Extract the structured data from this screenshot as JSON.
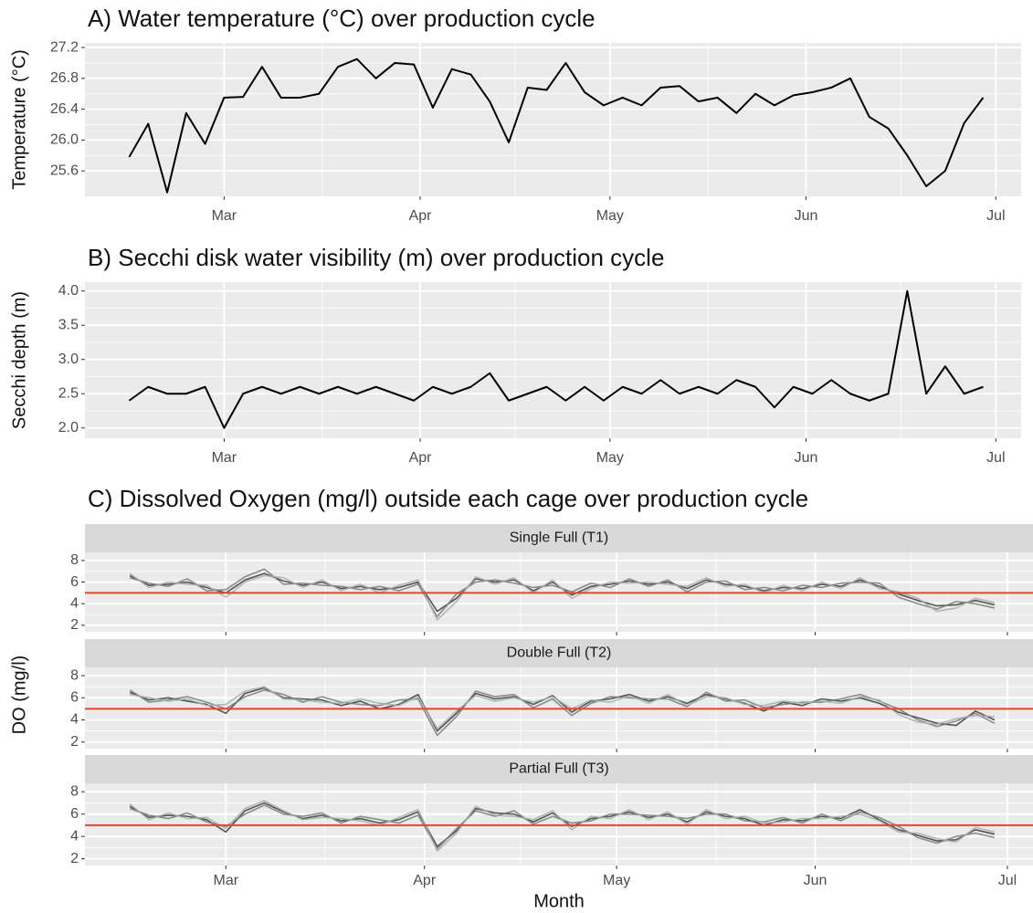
{
  "chart_data": [
    {
      "type": "line",
      "title": "A) Water temperature (°C) over production cycle",
      "y_label": "Temperature (°C)",
      "color": "#000000",
      "x": [
        0,
        3,
        6,
        9,
        12,
        15,
        18,
        21,
        24,
        27,
        30,
        33,
        36,
        39,
        42,
        45,
        48,
        51,
        54,
        57,
        60,
        63,
        66,
        69,
        72,
        75,
        78,
        81,
        84,
        87,
        90,
        93,
        96,
        99,
        102,
        105,
        108,
        111,
        114,
        117,
        120,
        123,
        126,
        129,
        132,
        135
      ],
      "values": [
        25.78,
        26.21,
        25.32,
        26.35,
        25.95,
        26.55,
        26.56,
        26.95,
        26.55,
        26.55,
        26.6,
        26.95,
        27.05,
        26.8,
        27.0,
        26.98,
        26.42,
        26.92,
        26.85,
        26.5,
        25.97,
        26.68,
        26.65,
        27.0,
        26.62,
        26.45,
        26.55,
        26.45,
        26.68,
        26.7,
        26.5,
        26.55,
        26.35,
        26.6,
        26.45,
        26.58,
        26.62,
        26.68,
        26.8,
        26.3,
        26.15,
        25.8,
        25.4,
        25.6,
        26.22,
        26.55
      ],
      "xlim": [
        -7,
        141
      ],
      "xticks": [
        {
          "value": 15,
          "label": "Mar"
        },
        {
          "value": 46,
          "label": "Apr"
        },
        {
          "value": 76,
          "label": "May"
        },
        {
          "value": 107,
          "label": "Jun"
        },
        {
          "value": 137,
          "label": "Jul"
        }
      ],
      "ylim": [
        25.27,
        27.26
      ],
      "yticks": [
        25.6,
        {
          "value": 26,
          "label": "26.0"
        },
        26.4,
        26.8,
        27.2
      ],
      "grid": true
    },
    {
      "type": "line",
      "title": "B) Secchi disk water visibility (m) over production cycle",
      "y_label": "Secchi depth (m)",
      "color": "#000000",
      "x": [
        0,
        3,
        6,
        9,
        12,
        15,
        18,
        21,
        24,
        27,
        30,
        33,
        36,
        39,
        42,
        45,
        48,
        51,
        54,
        57,
        60,
        63,
        66,
        69,
        72,
        75,
        78,
        81,
        84,
        87,
        90,
        93,
        96,
        99,
        102,
        105,
        108,
        111,
        114,
        117,
        120,
        123,
        126,
        129,
        132,
        135
      ],
      "values": [
        2.4,
        2.6,
        2.5,
        2.5,
        2.6,
        2.0,
        2.5,
        2.6,
        2.5,
        2.6,
        2.5,
        2.6,
        2.5,
        2.6,
        2.5,
        2.4,
        2.6,
        2.5,
        2.6,
        2.8,
        2.4,
        2.5,
        2.6,
        2.4,
        2.6,
        2.4,
        2.6,
        2.5,
        2.7,
        2.5,
        2.6,
        2.5,
        2.7,
        2.6,
        2.3,
        2.6,
        2.5,
        2.7,
        2.5,
        2.4,
        2.5,
        4.0,
        2.5,
        2.9,
        2.5,
        2.6
      ],
      "xlim": [
        -7,
        141
      ],
      "xticks": [
        {
          "value": 15,
          "label": "Mar"
        },
        {
          "value": 46,
          "label": "Apr"
        },
        {
          "value": 76,
          "label": "May"
        },
        {
          "value": 107,
          "label": "Jun"
        },
        {
          "value": 137,
          "label": "Jul"
        }
      ],
      "ylim": [
        1.85,
        4.13
      ],
      "yticks": [
        {
          "value": 2,
          "label": "2.0"
        },
        2.5,
        {
          "value": 3,
          "label": "3.0"
        },
        3.5,
        {
          "value": 4,
          "label": "4.0"
        }
      ],
      "grid": true
    },
    {
      "type": "facet-line",
      "title": "C) Dissolved Oxygen (mg/l) outside each cage over production cycle",
      "x_label": "Month",
      "y_label": "DO (mg/l)",
      "hline": 5,
      "hline_color": "#e0472f",
      "x": [
        0,
        3,
        6,
        9,
        12,
        15,
        18,
        21,
        24,
        27,
        30,
        33,
        36,
        39,
        42,
        45,
        48,
        51,
        54,
        57,
        60,
        63,
        66,
        69,
        72,
        75,
        78,
        81,
        84,
        87,
        90,
        93,
        96,
        99,
        102,
        105,
        108,
        111,
        114,
        117,
        120,
        123,
        126,
        129,
        132,
        135
      ],
      "xlim": [
        -7,
        141
      ],
      "xticks": [
        {
          "value": 15,
          "label": "Mar"
        },
        {
          "value": 46,
          "label": "Apr"
        },
        {
          "value": 76,
          "label": "May"
        },
        {
          "value": 107,
          "label": "Jun"
        },
        {
          "value": 137,
          "label": "Jul"
        }
      ],
      "ylim": [
        1.4,
        8.75
      ],
      "yticks": [
        2,
        4,
        6,
        8
      ],
      "grid": true,
      "facets": [
        {
          "title": "Single Full (T1)",
          "series": [
            {
              "color": "#3a3a3a",
              "values": [
                6.6,
                5.7,
                5.8,
                6.0,
                5.5,
                5.0,
                6.2,
                6.8,
                6.1,
                5.7,
                6.0,
                5.4,
                5.6,
                5.3,
                5.5,
                6.0,
                3.3,
                4.5,
                6.3,
                6.0,
                6.2,
                5.2,
                6.0,
                4.8,
                5.6,
                5.8,
                6.1,
                5.8,
                6.0,
                5.4,
                6.2,
                5.8,
                5.6,
                5.2,
                5.5,
                5.4,
                5.8,
                5.6,
                6.2,
                5.6,
                4.9,
                4.3,
                3.8,
                3.9,
                4.3,
                3.9
              ]
            },
            {
              "color": "#7a7a7a",
              "values": [
                6.4,
                5.9,
                5.6,
                6.3,
                5.2,
                5.3,
                6.5,
                7.2,
                5.8,
                5.9,
                5.7,
                5.6,
                5.3,
                5.6,
                5.2,
                5.8,
                2.8,
                4.9,
                6.0,
                6.2,
                5.9,
                5.5,
                5.7,
                5.1,
                5.9,
                5.5,
                6.3,
                5.6,
                6.2,
                5.1,
                6.0,
                6.1,
                5.3,
                5.5,
                5.2,
                5.7,
                5.5,
                5.9,
                6.0,
                5.9,
                4.6,
                4.0,
                3.5,
                4.2,
                4.0,
                3.6
              ]
            },
            {
              "color": "#acacac",
              "values": [
                6.8,
                5.5,
                6.0,
                5.8,
                5.7,
                4.6,
                6.0,
                6.6,
                6.4,
                5.5,
                6.2,
                5.2,
                5.8,
                5.0,
                5.7,
                6.2,
                2.5,
                4.2,
                6.5,
                5.8,
                6.4,
                5.0,
                6.2,
                4.5,
                5.4,
                6.0,
                5.9,
                6.0,
                5.8,
                5.6,
                6.4,
                5.6,
                5.8,
                5.0,
                5.7,
                5.2,
                6.0,
                5.4,
                6.4,
                5.4,
                5.1,
                4.5,
                3.3,
                3.6,
                4.5,
                4.1
              ]
            }
          ]
        },
        {
          "title": "Double Full (T2)",
          "series": [
            {
              "color": "#3a3a3a",
              "values": [
                6.5,
                5.8,
                6.0,
                5.7,
                5.4,
                4.6,
                6.4,
                6.9,
                6.0,
                5.9,
                5.8,
                5.3,
                5.7,
                5.0,
                5.4,
                6.3,
                3.0,
                4.6,
                6.4,
                5.9,
                6.1,
                5.4,
                6.2,
                4.7,
                5.7,
                5.9,
                6.3,
                5.7,
                6.1,
                5.5,
                6.3,
                5.9,
                5.5,
                4.8,
                5.6,
                5.3,
                5.9,
                5.7,
                6.0,
                5.5,
                4.7,
                4.2,
                3.7,
                3.5,
                4.8,
                4.0
              ]
            },
            {
              "color": "#7a7a7a",
              "values": [
                6.7,
                5.6,
                5.8,
                6.1,
                5.6,
                5.0,
                6.1,
                6.7,
                6.3,
                5.6,
                6.1,
                5.6,
                5.4,
                5.3,
                5.8,
                5.9,
                2.6,
                4.3,
                6.6,
                6.1,
                6.3,
                5.1,
                5.9,
                4.4,
                5.5,
                6.1,
                6.0,
                5.9,
                5.9,
                5.2,
                6.5,
                5.7,
                5.8,
                5.1,
                5.4,
                5.6,
                5.6,
                5.9,
                6.3,
                5.7,
                5.0,
                4.0,
                3.4,
                3.9,
                4.6,
                3.7
              ]
            },
            {
              "color": "#acacac",
              "values": [
                6.3,
                6.0,
                5.7,
                5.9,
                5.3,
                5.4,
                6.6,
                7.0,
                5.9,
                5.8,
                5.6,
                5.5,
                5.9,
                5.5,
                5.3,
                6.1,
                3.2,
                4.8,
                6.2,
                5.7,
                6.0,
                5.6,
                6.1,
                5.0,
                5.8,
                5.6,
                6.2,
                5.5,
                6.3,
                5.3,
                6.1,
                6.0,
                5.4,
                5.3,
                5.7,
                5.5,
                5.7,
                5.5,
                6.1,
                5.8,
                4.5,
                3.8,
                3.6,
                4.1,
                4.4,
                4.3
              ]
            }
          ]
        },
        {
          "title": "Partial Full (T3)",
          "series": [
            {
              "color": "#3a3a3a",
              "values": [
                6.7,
                5.7,
                5.9,
                5.8,
                5.5,
                4.4,
                6.3,
                7.0,
                6.2,
                5.6,
                5.9,
                5.4,
                5.6,
                5.2,
                5.5,
                6.2,
                3.1,
                4.5,
                6.5,
                6.1,
                6.0,
                5.3,
                6.1,
                4.9,
                5.6,
                5.8,
                6.2,
                5.7,
                6.0,
                5.3,
                6.2,
                5.8,
                5.6,
                5.0,
                5.5,
                5.4,
                5.8,
                5.6,
                6.4,
                5.5,
                4.6,
                4.1,
                3.6,
                3.7,
                4.6,
                4.2
              ]
            },
            {
              "color": "#7a7a7a",
              "values": [
                6.5,
                5.9,
                5.6,
                6.1,
                5.3,
                4.9,
                6.0,
                6.8,
                6.0,
                5.8,
                6.1,
                5.2,
                5.8,
                5.5,
                5.2,
                5.9,
                2.9,
                4.7,
                6.3,
                5.8,
                6.3,
                5.1,
                5.8,
                5.2,
                5.4,
                6.0,
                6.0,
                5.9,
                5.8,
                5.6,
                6.0,
                6.0,
                5.4,
                5.3,
                5.7,
                5.2,
                6.0,
                5.4,
                6.2,
                5.7,
                4.9,
                3.9,
                3.4,
                4.0,
                4.3,
                3.9
              ]
            },
            {
              "color": "#acacac",
              "values": [
                6.9,
                5.5,
                6.1,
                5.6,
                5.7,
                4.7,
                6.5,
                7.2,
                6.3,
                5.5,
                5.7,
                5.6,
                5.4,
                5.0,
                5.7,
                6.4,
                2.7,
                4.3,
                6.7,
                5.9,
                5.8,
                5.5,
                6.3,
                4.6,
                5.8,
                5.6,
                6.4,
                5.5,
                6.2,
                5.1,
                6.4,
                5.6,
                5.8,
                5.2,
                5.3,
                5.6,
                5.6,
                5.8,
                6.0,
                5.4,
                4.4,
                4.3,
                3.8,
                3.5,
                4.8,
                4.4
              ]
            }
          ]
        }
      ]
    }
  ]
}
